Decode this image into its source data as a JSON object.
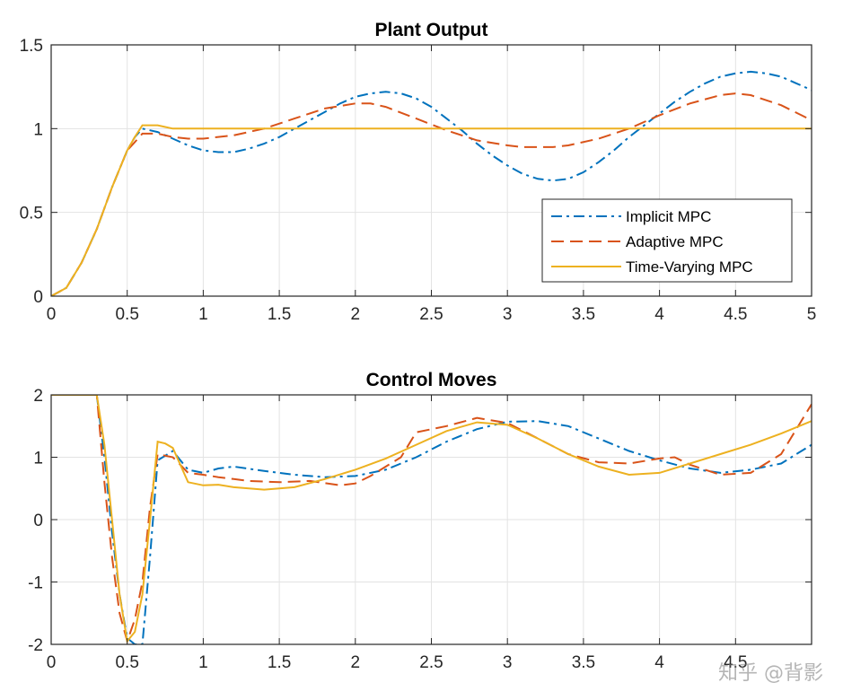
{
  "watermark": "知乎 @背影",
  "colors": {
    "implicit": "#0072BD",
    "adaptive": "#D95319",
    "timevarying": "#EDB120",
    "grid": "#e3e3e3",
    "axis": "#262626"
  },
  "chart_data": [
    {
      "type": "line",
      "title": "Plant Output",
      "xlabel": "",
      "ylabel": "",
      "xlim": [
        0,
        5
      ],
      "ylim": [
        0,
        1.5
      ],
      "xticks": [
        0,
        0.5,
        1,
        1.5,
        2,
        2.5,
        3,
        3.5,
        4,
        4.5,
        5
      ],
      "yticks": [
        0,
        0.5,
        1,
        1.5
      ],
      "grid": true,
      "legend": {
        "placement": "lower-right",
        "entries": [
          "Implicit MPC",
          "Adaptive MPC",
          "Time-Varying MPC"
        ]
      },
      "series": [
        {
          "name": "Implicit MPC",
          "style": "dashdot",
          "color": "#0072BD",
          "x": [
            0,
            0.1,
            0.2,
            0.3,
            0.4,
            0.5,
            0.55,
            0.6,
            0.7,
            0.8,
            0.9,
            1.0,
            1.1,
            1.2,
            1.3,
            1.4,
            1.5,
            1.6,
            1.7,
            1.8,
            1.9,
            2.0,
            2.1,
            2.2,
            2.3,
            2.4,
            2.5,
            2.6,
            2.7,
            2.8,
            2.9,
            3.0,
            3.1,
            3.2,
            3.3,
            3.4,
            3.5,
            3.6,
            3.7,
            3.8,
            3.9,
            4.0,
            4.1,
            4.2,
            4.3,
            4.4,
            4.5,
            4.6,
            4.7,
            4.8,
            4.9,
            5.0
          ],
          "y": [
            0,
            0.05,
            0.2,
            0.4,
            0.65,
            0.87,
            0.95,
            1.0,
            0.98,
            0.94,
            0.9,
            0.87,
            0.86,
            0.86,
            0.88,
            0.91,
            0.95,
            1.0,
            1.05,
            1.1,
            1.15,
            1.19,
            1.21,
            1.22,
            1.21,
            1.18,
            1.13,
            1.06,
            0.99,
            0.91,
            0.84,
            0.78,
            0.73,
            0.7,
            0.69,
            0.7,
            0.74,
            0.8,
            0.87,
            0.95,
            1.02,
            1.09,
            1.16,
            1.22,
            1.27,
            1.31,
            1.33,
            1.34,
            1.33,
            1.31,
            1.27,
            1.23
          ]
        },
        {
          "name": "Adaptive MPC",
          "style": "dashed",
          "color": "#D95319",
          "x": [
            0,
            0.1,
            0.2,
            0.3,
            0.4,
            0.5,
            0.55,
            0.6,
            0.7,
            0.8,
            0.9,
            1.0,
            1.2,
            1.4,
            1.6,
            1.8,
            2.0,
            2.1,
            2.2,
            2.4,
            2.6,
            2.8,
            3.0,
            3.1,
            3.2,
            3.3,
            3.4,
            3.6,
            3.8,
            4.0,
            4.2,
            4.4,
            4.5,
            4.6,
            4.8,
            5.0
          ],
          "y": [
            0,
            0.05,
            0.2,
            0.4,
            0.65,
            0.87,
            0.92,
            0.97,
            0.97,
            0.95,
            0.94,
            0.94,
            0.96,
            1.0,
            1.06,
            1.12,
            1.15,
            1.15,
            1.13,
            1.06,
            0.99,
            0.93,
            0.9,
            0.89,
            0.89,
            0.89,
            0.9,
            0.94,
            1.0,
            1.08,
            1.15,
            1.2,
            1.21,
            1.2,
            1.14,
            1.05
          ]
        },
        {
          "name": "Time-Varying MPC",
          "style": "solid",
          "color": "#EDB120",
          "x": [
            0,
            0.1,
            0.2,
            0.3,
            0.4,
            0.5,
            0.55,
            0.6,
            0.65,
            0.7,
            0.75,
            0.8,
            0.9,
            1.0,
            5.0
          ],
          "y": [
            0,
            0.05,
            0.2,
            0.4,
            0.65,
            0.87,
            0.95,
            1.02,
            1.02,
            1.02,
            1.01,
            1.0,
            1.0,
            1.0,
            1.0
          ]
        }
      ]
    },
    {
      "type": "line",
      "title": "Control Moves",
      "xlabel": "",
      "ylabel": "",
      "xlim": [
        0,
        5
      ],
      "ylim": [
        -2,
        2
      ],
      "xticks": [
        0,
        0.5,
        1,
        1.5,
        2,
        2.5,
        3,
        3.5,
        4,
        4.5
      ],
      "yticks": [
        -2,
        -1,
        0,
        1,
        2
      ],
      "grid": true,
      "series": [
        {
          "name": "Implicit MPC",
          "style": "dashdot",
          "color": "#0072BD",
          "x": [
            0,
            0.3,
            0.35,
            0.4,
            0.45,
            0.5,
            0.55,
            0.6,
            0.65,
            0.7,
            0.8,
            0.9,
            1.0,
            1.1,
            1.2,
            1.4,
            1.6,
            1.8,
            2.0,
            2.2,
            2.4,
            2.6,
            2.8,
            3.0,
            3.2,
            3.4,
            3.6,
            3.8,
            4.0,
            4.2,
            4.4,
            4.6,
            4.8,
            5.0
          ],
          "y": [
            2,
            2,
            1.0,
            -0.2,
            -1.2,
            -1.9,
            -2.0,
            -2.0,
            -0.6,
            0.95,
            1.1,
            0.8,
            0.75,
            0.82,
            0.85,
            0.78,
            0.72,
            0.68,
            0.7,
            0.8,
            1.0,
            1.25,
            1.45,
            1.57,
            1.58,
            1.5,
            1.3,
            1.1,
            0.95,
            0.82,
            0.75,
            0.8,
            0.9,
            1.2
          ]
        },
        {
          "name": "Adaptive MPC",
          "style": "dashed",
          "color": "#D95319",
          "x": [
            0,
            0.3,
            0.35,
            0.4,
            0.45,
            0.5,
            0.55,
            0.6,
            0.65,
            0.7,
            0.8,
            0.9,
            1.0,
            1.1,
            1.2,
            1.3,
            1.5,
            1.7,
            1.9,
            2.0,
            2.1,
            2.3,
            2.4,
            2.6,
            2.8,
            3.0,
            3.2,
            3.4,
            3.6,
            3.8,
            4.0,
            4.1,
            4.2,
            4.4,
            4.6,
            4.8,
            5.0
          ],
          "y": [
            2,
            2,
            0.6,
            -0.6,
            -1.5,
            -1.95,
            -1.6,
            -1.0,
            0.2,
            1.05,
            1.0,
            0.75,
            0.72,
            0.68,
            0.65,
            0.62,
            0.6,
            0.62,
            0.55,
            0.58,
            0.7,
            1.0,
            1.4,
            1.5,
            1.63,
            1.55,
            1.3,
            1.05,
            0.92,
            0.9,
            0.98,
            1.0,
            0.88,
            0.72,
            0.75,
            1.05,
            1.85
          ]
        },
        {
          "name": "Time-Varying MPC",
          "style": "solid",
          "color": "#EDB120",
          "x": [
            0,
            0.3,
            0.35,
            0.4,
            0.45,
            0.5,
            0.55,
            0.6,
            0.65,
            0.7,
            0.75,
            0.8,
            0.9,
            1.0,
            1.1,
            1.2,
            1.4,
            1.6,
            1.8,
            2.0,
            2.2,
            2.4,
            2.6,
            2.8,
            3.0,
            3.2,
            3.4,
            3.6,
            3.8,
            4.0,
            4.2,
            4.4,
            4.6,
            4.8,
            5.0
          ],
          "y": [
            2,
            2,
            1.2,
            0.0,
            -1.2,
            -1.95,
            -1.8,
            -1.2,
            0.0,
            1.25,
            1.22,
            1.15,
            0.6,
            0.55,
            0.56,
            0.52,
            0.48,
            0.52,
            0.65,
            0.8,
            0.98,
            1.2,
            1.42,
            1.56,
            1.52,
            1.3,
            1.05,
            0.85,
            0.72,
            0.75,
            0.9,
            1.05,
            1.2,
            1.38,
            1.58
          ]
        }
      ]
    }
  ]
}
